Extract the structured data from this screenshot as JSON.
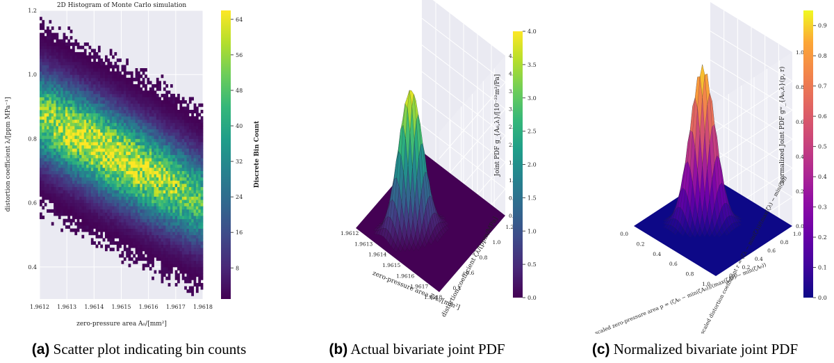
{
  "chart_data": [
    {
      "type": "heatmap",
      "title": "2D Histogram of Monte Carlo simulation",
      "xlabel": "zero-pressure area A₀/[mm²]",
      "ylabel": "distortion coefficient λ/[ppm MPa⁻¹]",
      "xlim": [
        1.9612,
        1.9618
      ],
      "ylim": [
        0.3,
        1.2
      ],
      "xticks": [
        "1.9612",
        "1.9613",
        "1.9614",
        "1.9615",
        "1.9616",
        "1.9617",
        "1.9618"
      ],
      "yticks": [
        "0.4",
        "0.6",
        "0.8",
        "1.0",
        "1.2"
      ],
      "colorbar": {
        "label": "Discrete Bin Count",
        "ticks": [
          "8",
          "16",
          "24",
          "32",
          "40",
          "48",
          "56",
          "64"
        ],
        "range": [
          1,
          66
        ]
      },
      "distribution": {
        "center_x": 1.96145,
        "center_y": 0.76,
        "peak_count": 64,
        "correlation": -0.9
      },
      "grid": true,
      "caption_tag": "(a)",
      "caption": "Scatter plot indicating bin counts"
    },
    {
      "type": "surface3d",
      "xlabel": "zero-pressure area ζA₀/[mm²]",
      "ylabel": "distortion coefficient ζλ/[ppm/MPa]",
      "zlabel": "Joint PDF g_{A₀,λ}/[10⁻²²m²/Pa]",
      "xticks": [
        "1.9612",
        "1.9613",
        "1.9614",
        "1.9615",
        "1.9616",
        "1.9617",
        "1.9618"
      ],
      "yticks": [
        "0.4",
        "0.6",
        "0.8",
        "1.0",
        "1.2"
      ],
      "zticks": [
        "0.0",
        "0.5",
        "1.0",
        "1.5",
        "2.0",
        "2.5",
        "3.0",
        "3.5",
        "4.0",
        "4.5"
      ],
      "colorbar": {
        "ticks": [
          "0.0",
          "0.5",
          "1.0",
          "1.5",
          "2.0",
          "2.5",
          "3.0",
          "3.5",
          "4.0"
        ],
        "range": [
          0,
          4
        ]
      },
      "colormap": "viridis",
      "caption_tag": "(b)",
      "caption": "Actual bivariate joint PDF"
    },
    {
      "type": "surface3d",
      "xlabel": "scaled zero-pressure area p = (ζA₀ − min(ζA₀))/(max(ζA₀) − min(ζA₀))",
      "ylabel": "scaled distortion coefficient r = (ζλ − min(ζλ))/(max(ζλ) − min(ζλ))",
      "zlabel": "normalized Joint PDF gʷ_{A₀,λ}(p, r)",
      "xticks": [
        "0.0",
        "0.2",
        "0.4",
        "0.6",
        "0.8",
        "1.0"
      ],
      "yticks": [
        "0.0",
        "0.2",
        "0.4",
        "0.6",
        "0.8",
        "1.0"
      ],
      "zticks": [
        "0.0",
        "0.2",
        "0.4",
        "0.6",
        "0.8",
        "1.0"
      ],
      "colorbar": {
        "ticks": [
          "0.0",
          "0.1",
          "0.2",
          "0.3",
          "0.4",
          "0.5",
          "0.6",
          "0.7",
          "0.8",
          "0.9"
        ],
        "range": [
          0,
          0.95
        ]
      },
      "colormap": "plasma",
      "caption_tag": "(c)",
      "caption": "Normalized bivariate joint PDF"
    }
  ]
}
